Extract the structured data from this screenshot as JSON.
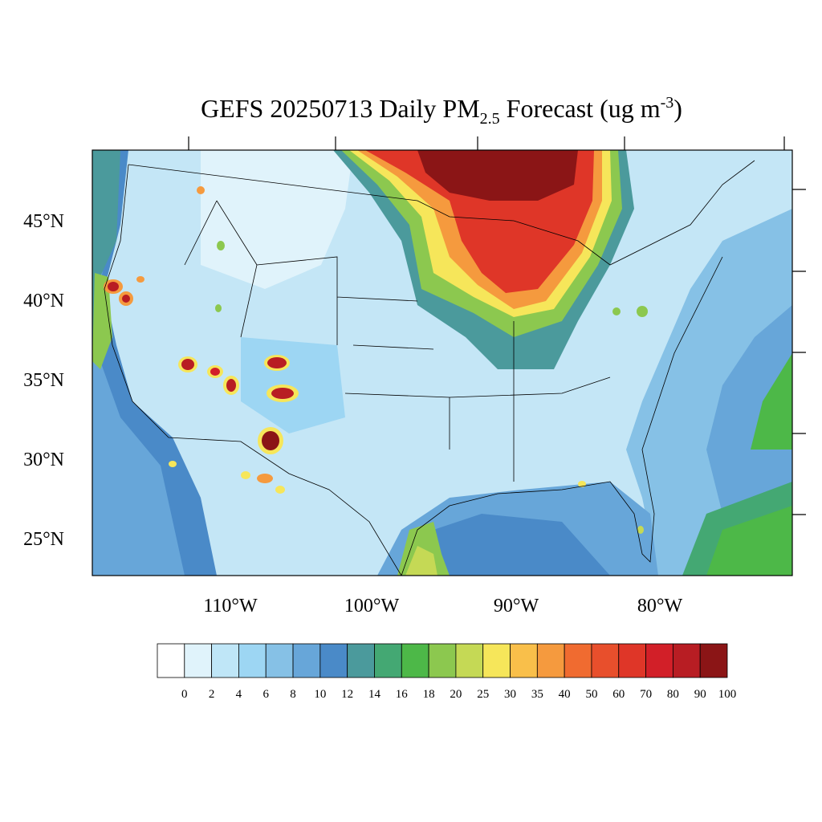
{
  "title": [
    "GEFS 20250713 Daily PM",
    "2.5",
    " Forecast (ug m",
    "-3",
    ")"
  ],
  "lat_labels": [
    "45°N",
    "40°N",
    "35°N",
    "30°N",
    "25°N"
  ],
  "lon_labels": [
    "110°W",
    "100°W",
    "90°W",
    "80°W"
  ],
  "colorbar": {
    "colors": [
      "#ffffff",
      "#e0f3fb",
      "#bfe6f7",
      "#9dd6f3",
      "#86c1e6",
      "#67a6d9",
      "#4a8ac8",
      "#4b9a9c",
      "#44a873",
      "#4db848",
      "#8cc84f",
      "#c5d955",
      "#f6e65a",
      "#f9bf4a",
      "#f59a3e",
      "#f06b30",
      "#e84f2c",
      "#df3628",
      "#d21f28",
      "#b81d23",
      "#8b1516"
    ],
    "labels": [
      0,
      2,
      4,
      6,
      8,
      10,
      12,
      14,
      16,
      18,
      20,
      25,
      30,
      35,
      40,
      50,
      60,
      70,
      80,
      90,
      100
    ]
  }
}
